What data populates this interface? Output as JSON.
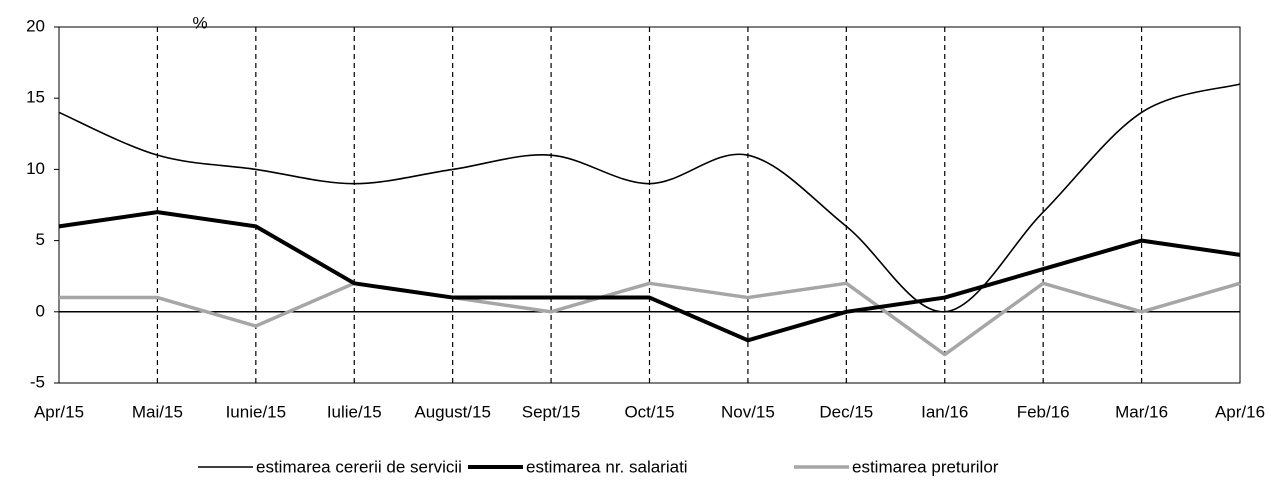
{
  "chart_data": {
    "type": "line",
    "y_unit": "%",
    "categories": [
      "Apr/15",
      "Mai/15",
      "Iunie/15",
      "Iulie/15",
      "August/15",
      "Sept/15",
      "Oct/15",
      "Nov/15",
      "Dec/15",
      "Ian/16",
      "Feb/16",
      "Mar/16",
      "Apr/16"
    ],
    "series": [
      {
        "name": "estimarea cererii de servicii",
        "color": "#000000",
        "smooth": true,
        "values": [
          14,
          11,
          10,
          9,
          10,
          11,
          9,
          11,
          6,
          0,
          7,
          14,
          16
        ]
      },
      {
        "name": "estimarea nr. salariati",
        "color": "#000000",
        "smooth": false,
        "values": [
          6,
          7,
          6,
          2,
          1,
          1,
          1,
          -2,
          0,
          1,
          3,
          5,
          4
        ]
      },
      {
        "name": "estimarea preturilor",
        "color": "#a6a6a6",
        "smooth": false,
        "values": [
          1,
          1,
          -1,
          2,
          1,
          0,
          2,
          1,
          2,
          -3,
          2,
          0,
          2
        ]
      }
    ],
    "ylim": [
      -5,
      20
    ],
    "yticks": [
      -5,
      0,
      5,
      10,
      15,
      20
    ],
    "grid": true,
    "legend": "bottom"
  }
}
